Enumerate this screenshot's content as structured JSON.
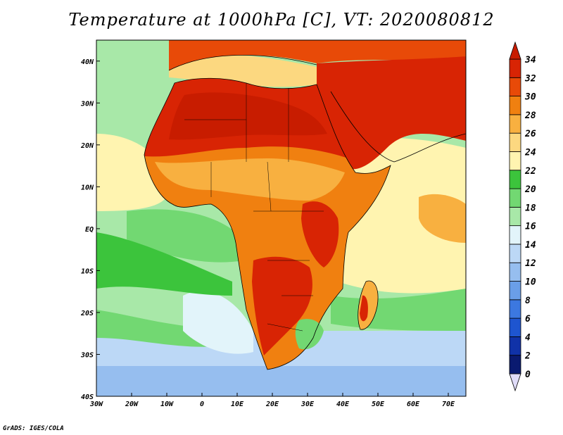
{
  "title": "Temperature at 1000hPa [C], VT: 2020080812",
  "footer": "GrADS: IGES/COLA",
  "map": {
    "region": "Africa and surrounding oceans",
    "variable": "Temperature at 1000hPa",
    "units": "C",
    "valid_time": "2020080812",
    "lon_range": [
      -30,
      75
    ],
    "lat_range": [
      -40,
      45
    ],
    "x_ticks": [
      {
        "value": -30,
        "label": "30W"
      },
      {
        "value": -20,
        "label": "20W"
      },
      {
        "value": -10,
        "label": "10W"
      },
      {
        "value": 0,
        "label": "0"
      },
      {
        "value": 10,
        "label": "10E"
      },
      {
        "value": 20,
        "label": "20E"
      },
      {
        "value": 30,
        "label": "30E"
      },
      {
        "value": 40,
        "label": "40E"
      },
      {
        "value": 50,
        "label": "50E"
      },
      {
        "value": 60,
        "label": "60E"
      },
      {
        "value": 70,
        "label": "70E"
      }
    ],
    "y_ticks": [
      {
        "value": 40,
        "label": "40N"
      },
      {
        "value": 30,
        "label": "30N"
      },
      {
        "value": 20,
        "label": "20N"
      },
      {
        "value": 10,
        "label": "10N"
      },
      {
        "value": 0,
        "label": "EQ"
      },
      {
        "value": -10,
        "label": "10S"
      },
      {
        "value": -20,
        "label": "20S"
      },
      {
        "value": -30,
        "label": "30S"
      },
      {
        "value": -40,
        "label": "40S"
      }
    ]
  },
  "colorbar": {
    "levels": [
      0,
      2,
      4,
      6,
      8,
      10,
      12,
      14,
      16,
      18,
      20,
      22,
      24,
      26,
      28,
      30,
      32,
      34
    ],
    "labels": [
      "0",
      "2",
      "4",
      "6",
      "8",
      "10",
      "12",
      "14",
      "16",
      "18",
      "20",
      "22",
      "24",
      "26",
      "28",
      "30",
      "32",
      "34"
    ],
    "colors": [
      "#e0dcf8",
      "#0a1a70",
      "#1032a8",
      "#1e55d0",
      "#3c78e0",
      "#6a9ee8",
      "#96beef",
      "#bcd8f6",
      "#e2f4fa",
      "#a8e8a8",
      "#72d872",
      "#3cc43c",
      "#fff4b0",
      "#fcd880",
      "#f8b040",
      "#f08010",
      "#e84a08",
      "#d82404",
      "#c81c00"
    ]
  },
  "map_colors": {
    "ocean_cold": "#96beef",
    "ocean_cool": "#bcd8f6",
    "ocean_mild": "#a8e8a8",
    "ocean_green": "#72d872",
    "ocean_warm": "#fff4b0",
    "land_hot": "#d82404",
    "land_very_hot": "#c81c00",
    "land_warm": "#f08010",
    "land_moderate": "#f8b040",
    "border": "#000000"
  }
}
